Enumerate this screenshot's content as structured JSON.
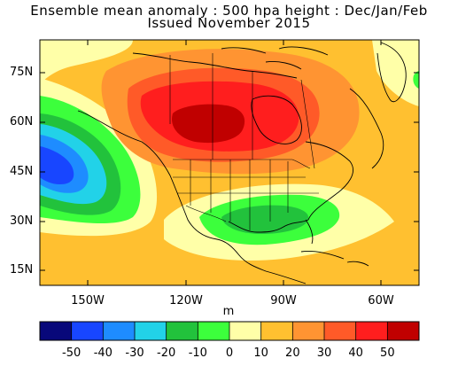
{
  "title": {
    "line1": "Ensemble mean anomaly : 500 hpa height : Dec/Jan/Feb",
    "line2": "Issued November 2015"
  },
  "map": {
    "lat_labels": [
      "75N",
      "60N",
      "45N",
      "30N",
      "15N"
    ],
    "lon_labels": [
      "150W",
      "120W",
      "90W",
      "60W"
    ],
    "units": "m",
    "extent": {
      "lon": [
        -170,
        -50
      ],
      "lat": [
        8,
        85
      ]
    },
    "features": [
      {
        "name": "ridge",
        "type": "positive-anomaly",
        "center_lon": -113,
        "center_lat": 58,
        "peak_m": 50
      },
      {
        "name": "pacific-trough",
        "type": "negative-anomaly",
        "center_lon": -163,
        "center_lat": 45,
        "min_m": -40
      },
      {
        "name": "gulf-trough",
        "type": "negative-anomaly",
        "center_lon": -97,
        "center_lat": 31,
        "min_m": -10
      },
      {
        "name": "labrador-weak-anomaly",
        "type": "negative-anomaly",
        "center_lon": -52,
        "center_lat": 70,
        "min_m": -10
      }
    ]
  },
  "colorbar": {
    "levels": [
      "-50",
      "-40",
      "-30",
      "-20",
      "-10",
      "0",
      "10",
      "20",
      "30",
      "40",
      "50"
    ],
    "colors": [
      "#08087a",
      "#1846ff",
      "#1e8cff",
      "#22d2e8",
      "#22c23c",
      "#3cff3c",
      "#ffffa8",
      "#ffc030",
      "#ff9432",
      "#ff5a28",
      "#ff1e1e",
      "#c00000"
    ]
  }
}
